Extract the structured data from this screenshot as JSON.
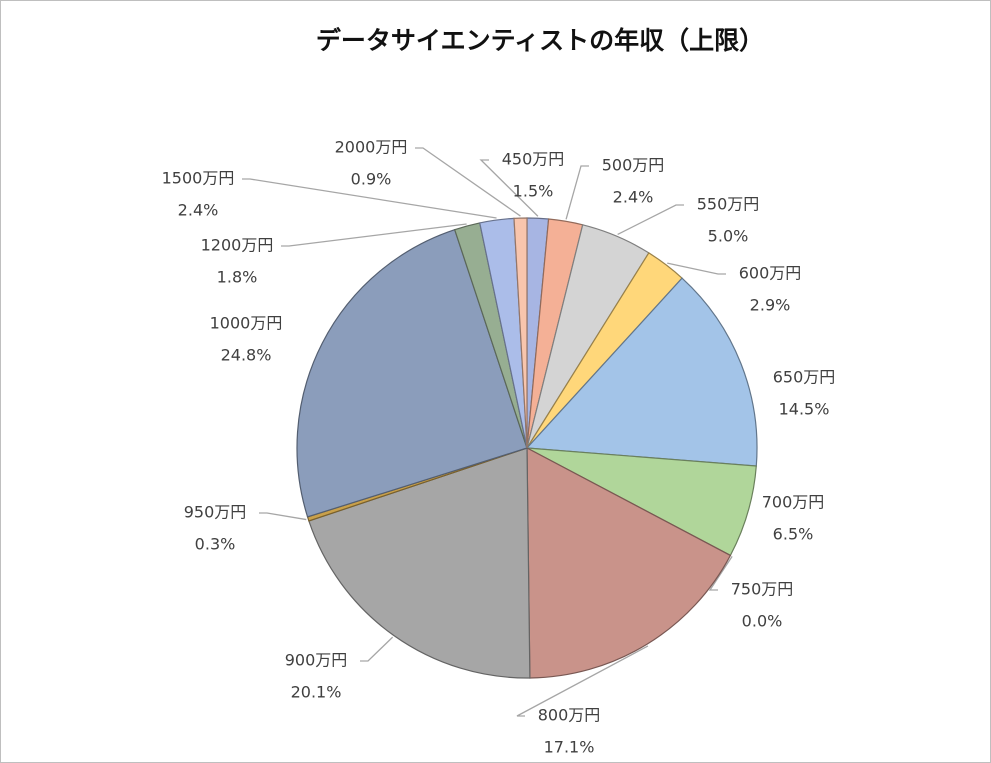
{
  "chart_data": {
    "type": "pie",
    "title": "データサイエンティストの年収（上限）",
    "categories": [
      "450万円",
      "500万円",
      "550万円",
      "600万円",
      "650万円",
      "700万円",
      "750万円",
      "800万円",
      "900万円",
      "950万円",
      "1000万円",
      "1200万円",
      "1500万円",
      "2000万円"
    ],
    "values": [
      1.5,
      2.4,
      5.0,
      2.9,
      14.5,
      6.5,
      0.0,
      17.1,
      20.1,
      0.3,
      24.8,
      1.8,
      2.4,
      0.9
    ],
    "value_labels": [
      "1.5%",
      "2.4%",
      "5.0%",
      "2.9%",
      "14.5%",
      "6.5%",
      "0.0%",
      "17.1%",
      "20.1%",
      "0.3%",
      "24.8%",
      "1.8%",
      "2.4%",
      "0.9%"
    ],
    "colors": [
      "#a7b5e3",
      "#f4b096",
      "#d4d4d4",
      "#ffd77a",
      "#a3c4e8",
      "#b0d69a",
      "#e8b48a",
      "#c9938a",
      "#a6a6a6",
      "#c9a04a",
      "#8b9dbb",
      "#97ae92",
      "#abbde9",
      "#f8c5ad"
    ]
  }
}
